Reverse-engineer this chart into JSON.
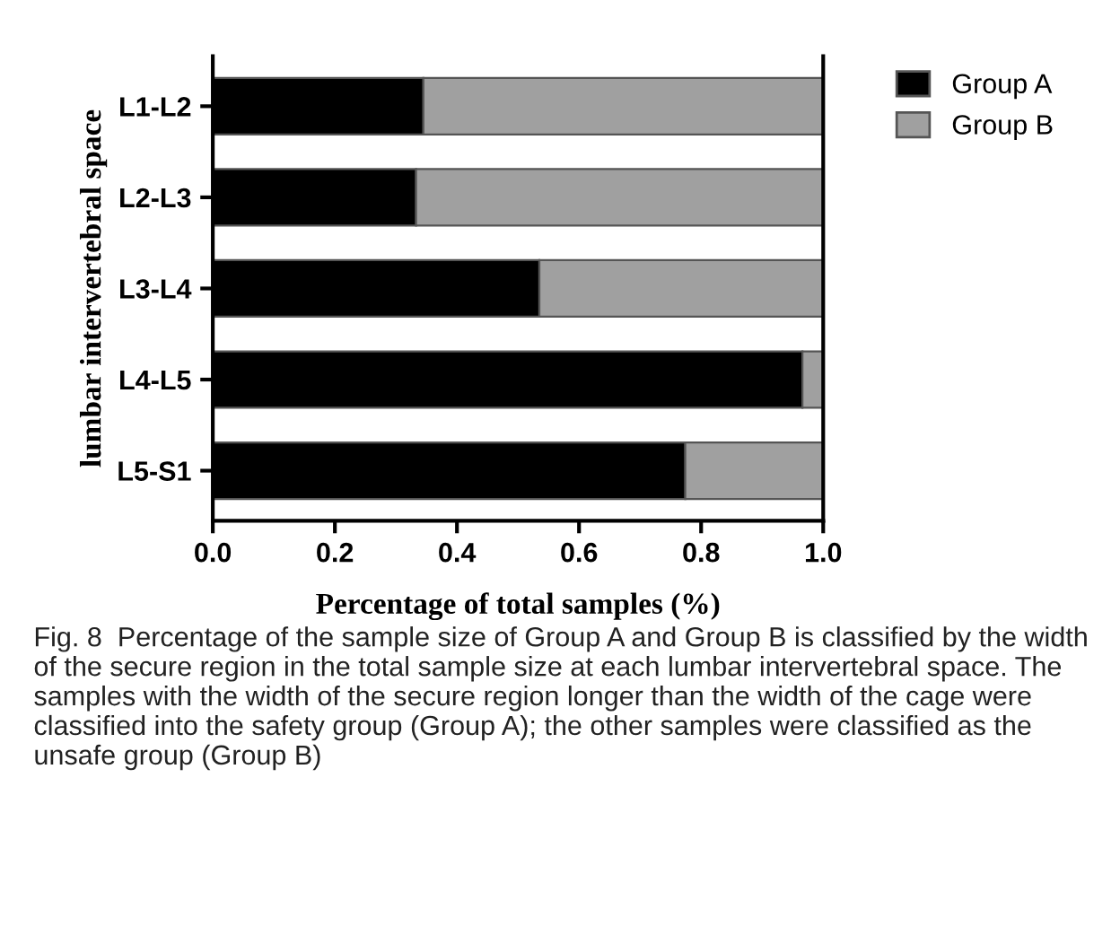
{
  "chart_data": {
    "type": "bar",
    "orientation": "horizontal",
    "stacked": true,
    "categories": [
      "L1-L2",
      "L2-L3",
      "L3-L4",
      "L4-L5",
      "L5-S1"
    ],
    "series": [
      {
        "name": "Group A",
        "color": "#000000",
        "values": [
          0.345,
          0.333,
          0.535,
          0.966,
          0.774
        ]
      },
      {
        "name": "Group B",
        "color": "#a0a0a0",
        "values": [
          0.655,
          0.667,
          0.465,
          0.034,
          0.226
        ]
      }
    ],
    "xlim": [
      0,
      1.0
    ],
    "xticks": [
      {
        "value": 0,
        "label": "0.0"
      },
      {
        "value": 0.2,
        "label": "0.2"
      },
      {
        "value": 0.4,
        "label": "0.4"
      },
      {
        "value": 0.6,
        "label": "0.6"
      },
      {
        "value": 0.8,
        "label": "0.8"
      },
      {
        "value": 1.0,
        "label": "1.0"
      }
    ],
    "xlabel": "Percentage of total samples (%)",
    "ylabel": "lumbar intervertebral space",
    "legend": "top right",
    "grid": false,
    "annotations": [
      "Fig. 8  Percentage of the sample size of Group A and Group B is classified by the width of the secure region in the total sample size at each lumbar intervertebral space. The samples with the width of the secure region longer than the width of the cage were classified into the safety group (Group A); the other samples were classified as the unsafe group (Group B)"
    ]
  }
}
